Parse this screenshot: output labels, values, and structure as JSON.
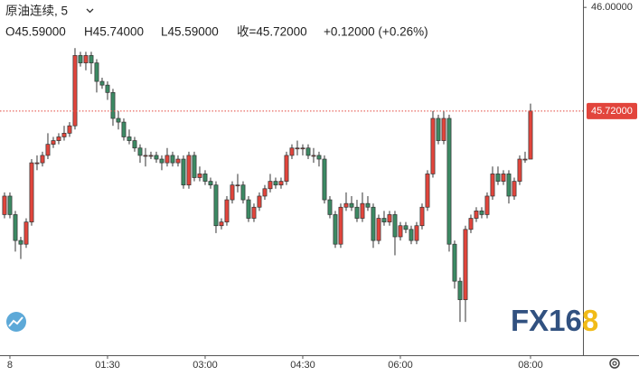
{
  "chart_data": {
    "type": "candlestick",
    "title": "原油连续, 5",
    "legend_texts": [
      "O45.59000",
      "H45.74000",
      "L45.59000",
      "收=45.72000",
      "+0.12000 (+0.26%)"
    ],
    "watermark": [
      "FX16",
      "8"
    ],
    "up_color": "#e2453c",
    "down_color": "#3c8a64",
    "last_price": {
      "value": 45.72,
      "label": "45.72000"
    },
    "xlim": [
      -0.83,
      106.67
    ],
    "xticks": [
      {
        "value": 1,
        "label": "8"
      },
      {
        "value": 19,
        "label": "01:30"
      },
      {
        "value": 37,
        "label": "03:00"
      },
      {
        "value": 55,
        "label": "04:30"
      },
      {
        "value": 73,
        "label": "06:00"
      },
      {
        "value": 97,
        "label": "08:00"
      }
    ],
    "ylim": [
      45.06,
      46.02
    ],
    "yticks": [
      {
        "value": 46,
        "label": "46.00000"
      }
    ],
    "open": [
      45.44,
      45.49,
      45.44,
      45.37,
      45.36,
      45.42,
      45.58,
      45.58,
      45.6,
      45.63,
      45.64,
      45.65,
      45.66,
      45.68,
      45.87,
      45.85,
      45.87,
      45.85,
      45.8,
      45.79,
      45.77,
      45.7,
      45.69,
      45.65,
      45.64,
      45.62,
      45.6,
      45.6,
      45.6,
      45.59,
      45.58,
      45.6,
      45.58,
      45.59,
      45.52,
      45.6,
      45.54,
      45.55,
      45.53,
      45.52,
      45.41,
      45.42,
      45.48,
      45.52,
      45.52,
      45.48,
      45.43,
      45.46,
      45.49,
      45.51,
      45.53,
      45.52,
      45.53,
      45.6,
      45.62,
      45.62,
      45.62,
      45.6,
      45.6,
      45.59,
      45.48,
      45.44,
      45.36,
      45.46,
      45.47,
      45.46,
      45.43,
      45.47,
      45.46,
      45.37,
      45.43,
      45.42,
      45.44,
      45.38,
      45.41,
      45.4,
      45.37,
      45.41,
      45.46,
      45.55,
      45.7,
      45.64,
      45.7,
      45.36,
      45.26,
      45.21,
      45.4,
      45.43,
      45.45,
      45.44,
      45.49,
      45.55,
      45.53,
      45.55,
      45.49,
      45.53,
      45.59,
      45.59
    ],
    "high": [
      45.5,
      45.5,
      45.45,
      45.38,
      45.43,
      45.59,
      45.6,
      45.61,
      45.66,
      45.65,
      45.66,
      45.68,
      45.69,
      45.89,
      45.88,
      45.88,
      45.88,
      45.86,
      45.81,
      45.8,
      45.78,
      45.72,
      45.7,
      45.67,
      45.65,
      45.63,
      45.62,
      45.61,
      45.61,
      45.6,
      45.62,
      45.61,
      45.6,
      45.6,
      45.61,
      45.61,
      45.57,
      45.56,
      45.54,
      45.53,
      45.43,
      45.49,
      45.53,
      45.55,
      45.53,
      45.49,
      45.47,
      45.5,
      45.52,
      45.55,
      45.54,
      45.54,
      45.61,
      45.63,
      45.64,
      45.63,
      45.63,
      45.62,
      45.61,
      45.6,
      45.49,
      45.45,
      45.47,
      45.5,
      45.49,
      45.48,
      45.5,
      45.49,
      45.47,
      45.44,
      45.45,
      45.45,
      45.45,
      45.42,
      45.42,
      45.41,
      45.42,
      45.47,
      45.56,
      45.72,
      45.71,
      45.72,
      45.71,
      45.37,
      45.27,
      45.41,
      45.44,
      45.46,
      45.46,
      45.5,
      45.57,
      45.57,
      45.56,
      45.56,
      45.54,
      45.6,
      45.61,
      45.74
    ],
    "low": [
      45.43,
      45.43,
      45.34,
      45.32,
      45.35,
      45.41,
      45.56,
      45.57,
      45.59,
      45.62,
      45.63,
      45.64,
      45.65,
      45.67,
      45.84,
      45.83,
      45.82,
      45.77,
      45.78,
      45.75,
      45.68,
      45.67,
      45.64,
      45.63,
      45.61,
      45.58,
      45.57,
      45.59,
      45.58,
      45.56,
      45.57,
      45.57,
      45.57,
      45.51,
      45.51,
      45.53,
      45.53,
      45.52,
      45.51,
      45.39,
      45.4,
      45.41,
      45.47,
      45.5,
      45.47,
      45.42,
      45.42,
      45.45,
      45.48,
      45.5,
      45.51,
      45.51,
      45.52,
      45.59,
      45.6,
      45.6,
      45.59,
      45.58,
      45.57,
      45.47,
      45.43,
      45.35,
      45.35,
      45.45,
      45.45,
      45.42,
      45.42,
      45.45,
      45.35,
      45.36,
      45.41,
      45.41,
      45.33,
      45.37,
      45.39,
      45.36,
      45.36,
      45.4,
      45.45,
      45.54,
      45.63,
      45.63,
      45.34,
      45.24,
      45.15,
      45.15,
      45.39,
      45.42,
      45.43,
      45.43,
      45.48,
      45.52,
      45.52,
      45.47,
      45.48,
      45.52,
      45.58,
      45.59
    ],
    "close": [
      45.49,
      45.44,
      45.37,
      45.36,
      45.42,
      45.58,
      45.58,
      45.6,
      45.63,
      45.64,
      45.65,
      45.66,
      45.68,
      45.87,
      45.85,
      45.87,
      45.85,
      45.8,
      45.79,
      45.77,
      45.7,
      45.69,
      45.65,
      45.64,
      45.62,
      45.6,
      45.6,
      45.6,
      45.59,
      45.58,
      45.6,
      45.58,
      45.59,
      45.52,
      45.6,
      45.54,
      45.55,
      45.53,
      45.52,
      45.41,
      45.42,
      45.48,
      45.52,
      45.52,
      45.48,
      45.43,
      45.46,
      45.49,
      45.51,
      45.53,
      45.52,
      45.53,
      45.6,
      45.62,
      45.62,
      45.62,
      45.6,
      45.6,
      45.59,
      45.48,
      45.44,
      45.36,
      45.46,
      45.47,
      45.46,
      45.43,
      45.47,
      45.46,
      45.37,
      45.43,
      45.42,
      45.44,
      45.38,
      45.41,
      45.4,
      45.37,
      45.41,
      45.46,
      45.55,
      45.7,
      45.64,
      45.7,
      45.36,
      45.26,
      45.21,
      45.4,
      45.43,
      45.45,
      45.44,
      45.49,
      45.55,
      45.53,
      45.55,
      45.49,
      45.53,
      45.59,
      45.59,
      45.72
    ]
  }
}
